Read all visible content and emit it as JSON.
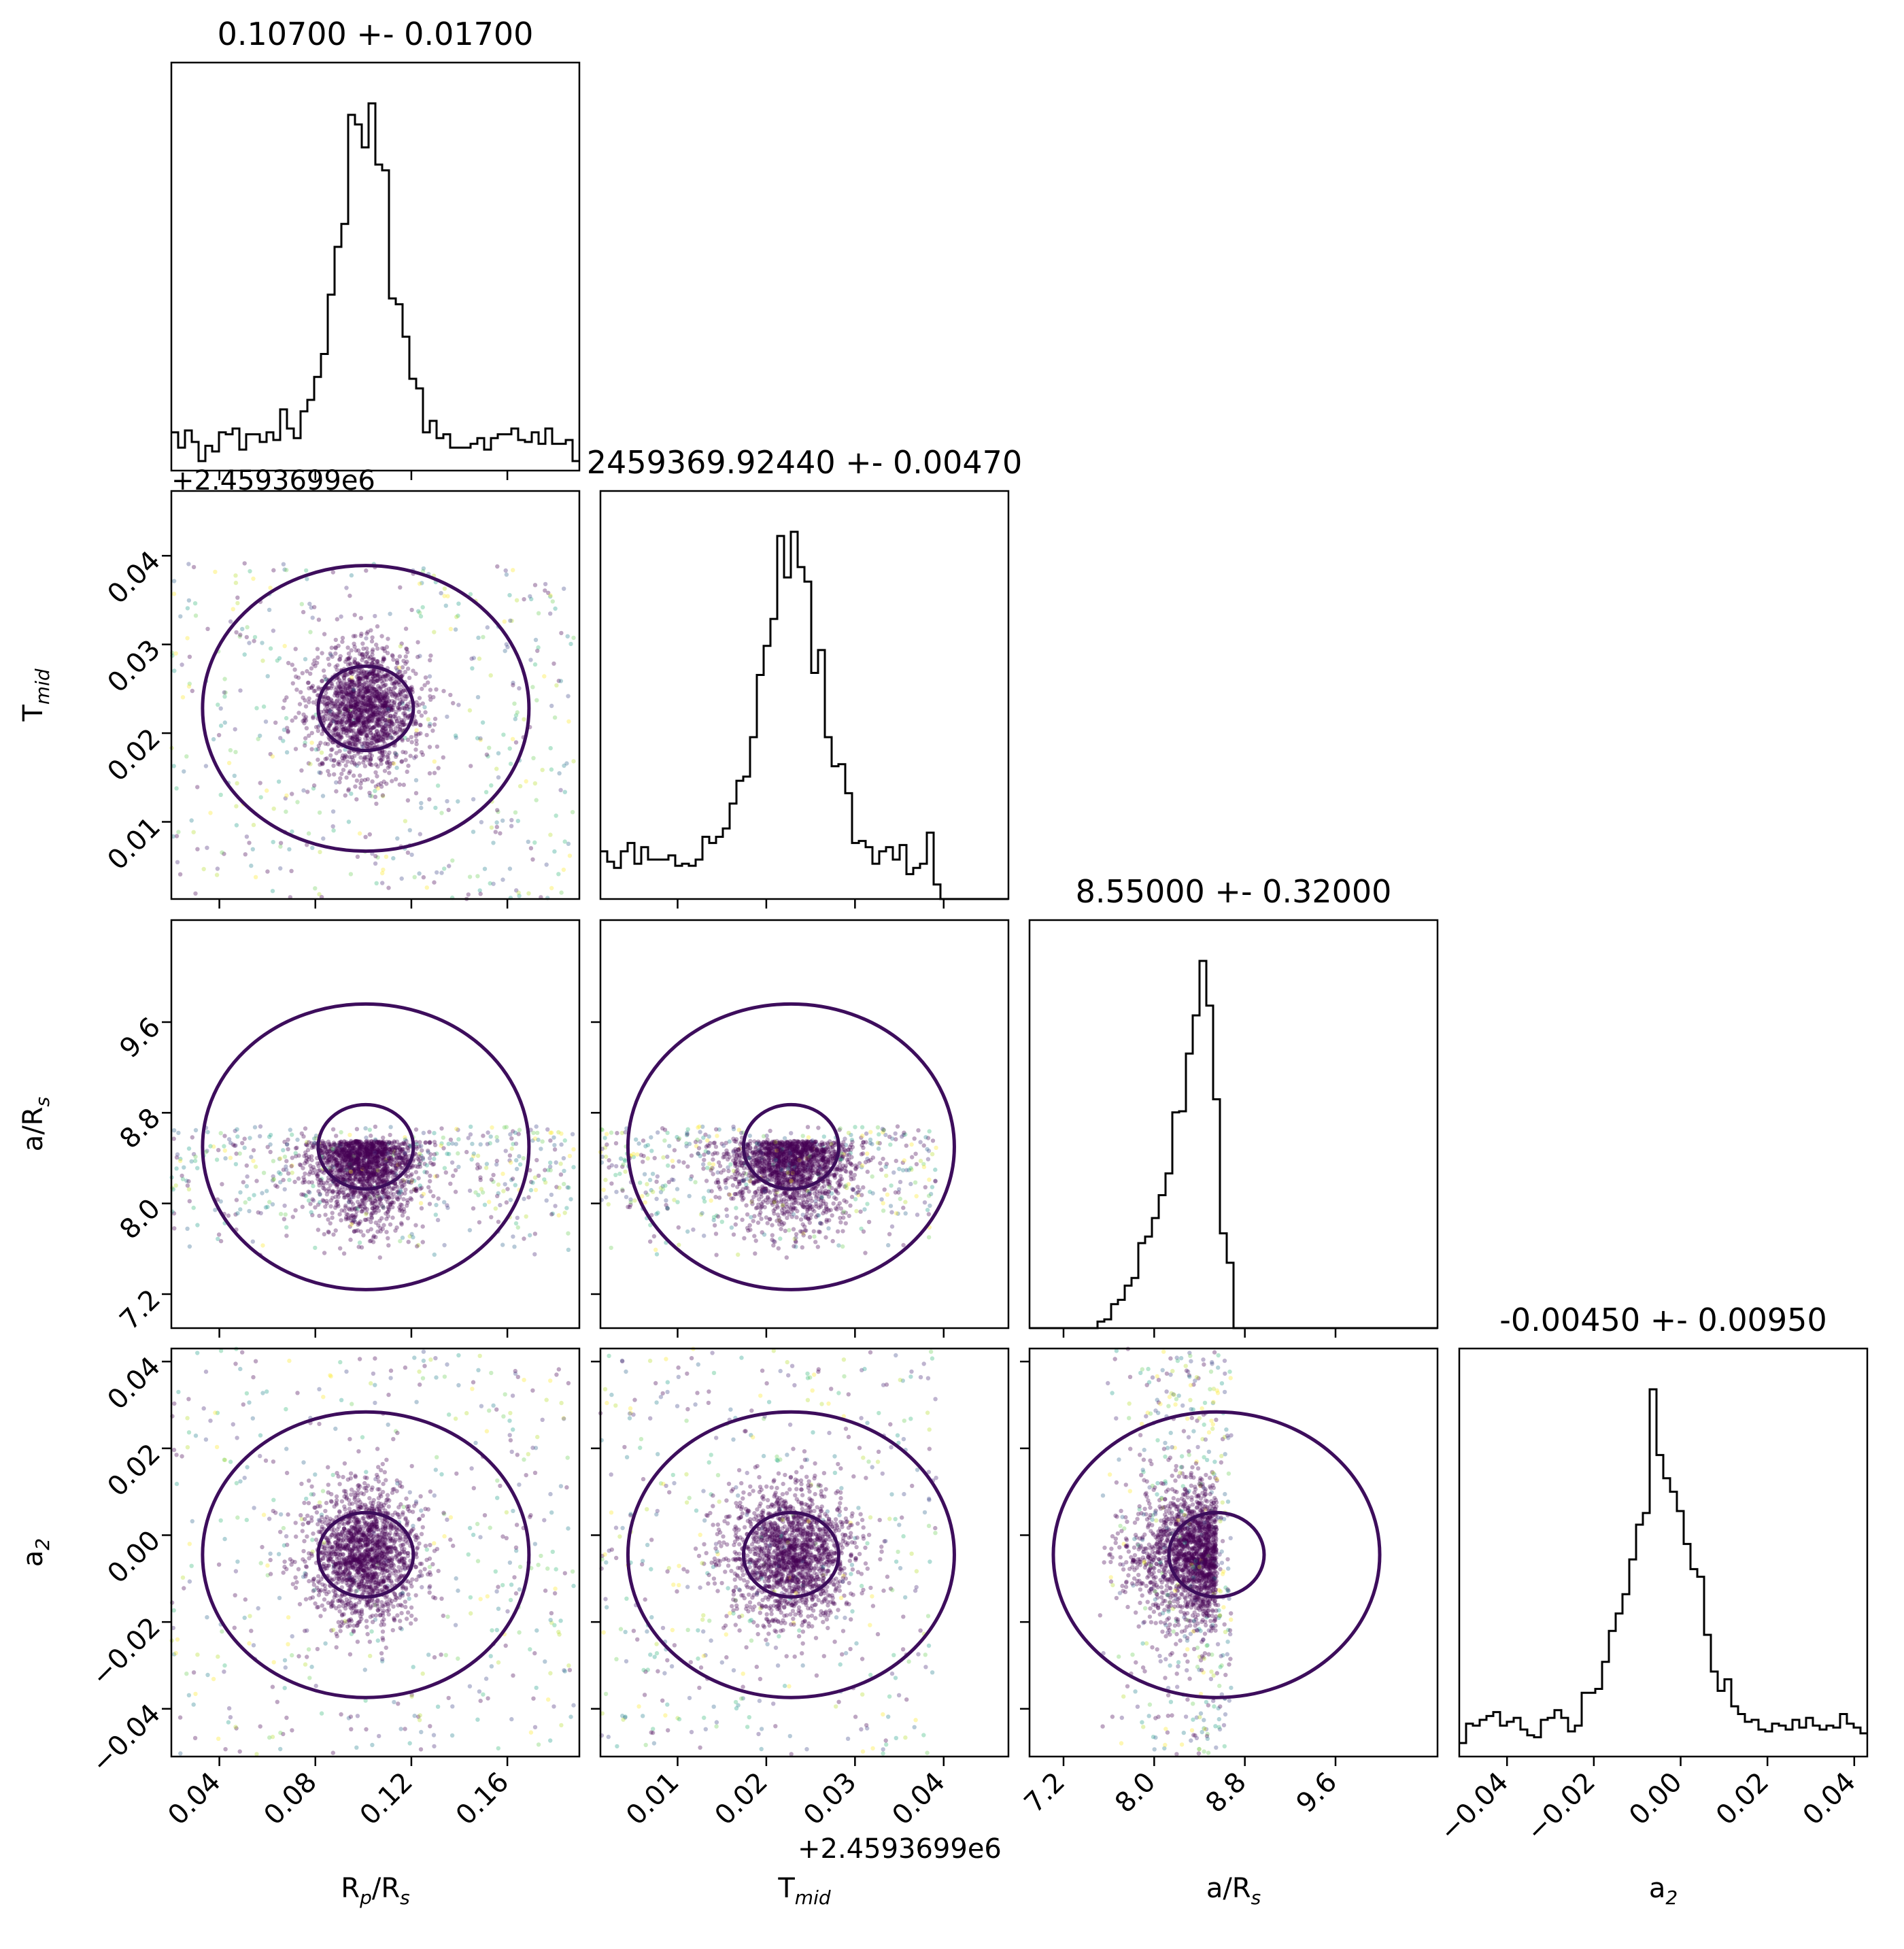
{
  "chart_data": {
    "type": "scatter",
    "kind": "corner-plot",
    "params": [
      {
        "key": "rp",
        "label_main": "R",
        "label_sub": "p",
        "label_rest": "/R",
        "label_sub2": "s",
        "ticks": [
          0.04,
          0.08,
          0.12,
          0.16
        ],
        "tick_labels": [
          "0.04",
          "0.08",
          "0.12",
          "0.16"
        ],
        "range": [
          0.02,
          0.19
        ]
      },
      {
        "key": "tmid",
        "label_main": "T",
        "label_sub": "mid",
        "label_rest": "",
        "label_sub2": "",
        "ticks": [
          0.01,
          0.02,
          0.03,
          0.04
        ],
        "tick_labels": [
          "0.01",
          "0.02",
          "0.03",
          "0.04"
        ],
        "range": [
          0.0013,
          0.0473
        ],
        "offset_text": "+2.4593699e6"
      },
      {
        "key": "ars",
        "label_main": "a/R",
        "label_sub": "s",
        "label_rest": "",
        "label_sub2": "",
        "ticks": [
          7.2,
          8.0,
          8.8,
          9.6
        ],
        "tick_labels": [
          "7.2",
          "8.0",
          "8.8",
          "9.6"
        ],
        "range": [
          6.9,
          10.5
        ]
      },
      {
        "key": "a2",
        "label_main": "a",
        "label_sub": "2",
        "label_rest": "",
        "label_sub2": "",
        "ticks": [
          -0.04,
          -0.02,
          0.0,
          0.02,
          0.04
        ],
        "tick_labels": [
          "−0.04",
          "−0.02",
          "0.00",
          "0.02",
          "0.04"
        ],
        "range": [
          -0.051,
          0.043
        ]
      }
    ],
    "titles": [
      "0.10700 +- 0.01700",
      "2459369.92440 +- 0.00470",
      "8.55000 +- 0.32000",
      "-0.00450 +- 0.00950"
    ],
    "marginals": [
      {
        "param": "rp",
        "median": 0.107,
        "sigma": 0.017
      },
      {
        "param": "tmid",
        "median": 0.0244,
        "sigma": 0.0047
      },
      {
        "param": "ars",
        "median": 8.55,
        "sigma": 0.32
      },
      {
        "param": "a2",
        "median": -0.0045,
        "sigma": 0.0095
      }
    ],
    "scatter_colormap": "viridis",
    "line_color": "#000000",
    "contour_color": "#3d0d5c",
    "point_color_dense": "#440154",
    "grid": false
  }
}
